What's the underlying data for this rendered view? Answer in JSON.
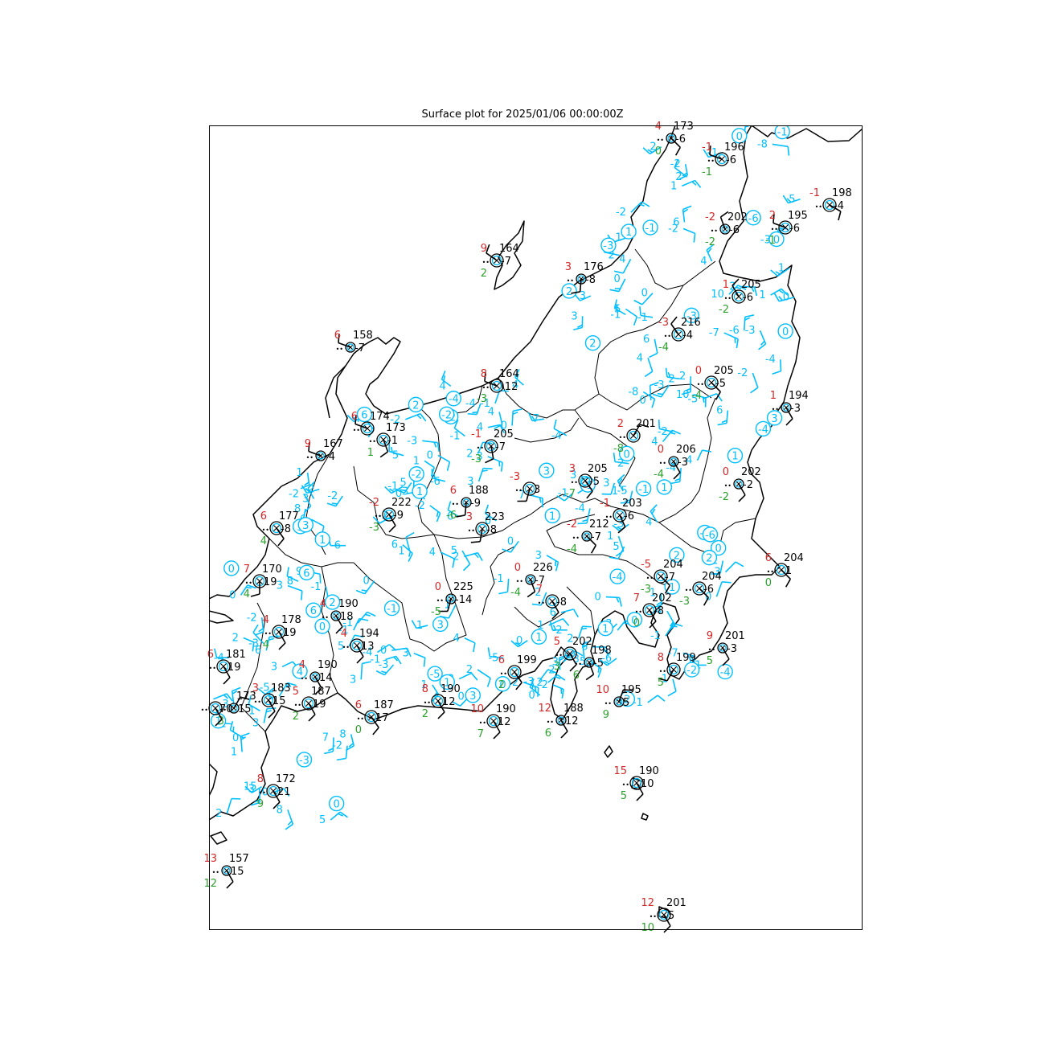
{
  "title": "Surface plot for 2025/01/06 00:00:00Z",
  "colors": {
    "temperature": "#d62728",
    "dewpoint": "#2ca02c",
    "pressure": "#000000",
    "dense_obs": "#00bfff",
    "coast": "#000000",
    "frame": "#000000"
  },
  "stations": [
    {
      "t": "4",
      "td": "0",
      "p": "173",
      "dp": "-6"
    },
    {
      "t": "-1",
      "td": "-1",
      "p": "196",
      "dp": "-6"
    },
    {
      "t": "-1",
      "td": "",
      "p": "198",
      "dp": "-4"
    },
    {
      "t": "-2",
      "td": "-2",
      "p": "202",
      "dp": "-6"
    },
    {
      "t": "2",
      "td": "-1",
      "p": "195",
      "dp": "-6"
    },
    {
      "t": "9",
      "td": "2",
      "p": "164",
      "dp": "-7"
    },
    {
      "t": "3",
      "td": "",
      "p": "176",
      "dp": "-8"
    },
    {
      "t": "1",
      "td": "-2",
      "p": "205",
      "dp": "-6"
    },
    {
      "t": "-3",
      "td": "-4",
      "p": "216",
      "dp": "-4"
    },
    {
      "t": "6",
      "td": "",
      "p": "158",
      "dp": "-7"
    },
    {
      "t": "8",
      "td": "-3",
      "p": "164",
      "dp": "-12"
    },
    {
      "t": "0",
      "td": "-4",
      "p": "205",
      "dp": "-5"
    },
    {
      "t": "1",
      "td": "",
      "p": "194",
      "dp": "-3"
    },
    {
      "t": "6",
      "td": "",
      "p": "174",
      "dp": ""
    },
    {
      "t": "",
      "td": "1",
      "p": "173",
      "dp": "-1"
    },
    {
      "t": "9",
      "td": "",
      "p": "167",
      "dp": "-4"
    },
    {
      "t": "-1",
      "td": "-3",
      "p": "205",
      "dp": "-7"
    },
    {
      "t": "2",
      "td": "-8",
      "p": "201",
      "dp": ""
    },
    {
      "t": "0",
      "td": "-4",
      "p": "206",
      "dp": "-3"
    },
    {
      "t": "3",
      "td": "-7",
      "p": "205",
      "dp": "-5"
    },
    {
      "t": "-3",
      "td": "",
      "p": "",
      "dp": "3"
    },
    {
      "t": "0",
      "td": "-2",
      "p": "202",
      "dp": "-2"
    },
    {
      "t": "6",
      "td": "4",
      "p": "177",
      "dp": "-8"
    },
    {
      "t": "-2",
      "td": "-3",
      "p": "222",
      "dp": "-9"
    },
    {
      "t": "6",
      "td": "-6",
      "p": "188",
      "dp": "-9"
    },
    {
      "t": "3",
      "td": "",
      "p": "223",
      "dp": "-8"
    },
    {
      "t": "-1",
      "td": "",
      "p": "203",
      "dp": "-6"
    },
    {
      "t": "-2",
      "td": "-4",
      "p": "212",
      "dp": "-7"
    },
    {
      "t": "6",
      "td": "0",
      "p": "204",
      "dp": "1"
    },
    {
      "t": "7",
      "td": "4",
      "p": "170",
      "dp": "19"
    },
    {
      "t": "0",
      "td": "-4",
      "p": "226",
      "dp": "-7"
    },
    {
      "t": "-5",
      "td": "-3",
      "p": "204",
      "dp": "-7"
    },
    {
      "t": "",
      "td": "-3",
      "p": "204",
      "dp": "-6"
    },
    {
      "t": "0",
      "td": "-5",
      "p": "225",
      "dp": "-14"
    },
    {
      "t": "7",
      "td": "",
      "p": "",
      "dp": "-8"
    },
    {
      "t": "7",
      "td": "0",
      "p": "202",
      "dp": "-8"
    },
    {
      "t": "4",
      "td": "",
      "p": "190",
      "dp": "18"
    },
    {
      "t": "4",
      "td": "4",
      "p": "178",
      "dp": "19"
    },
    {
      "t": "4",
      "td": "",
      "p": "194",
      "dp": "13"
    },
    {
      "t": "9",
      "td": "5",
      "p": "201",
      "dp": "-3"
    },
    {
      "t": "6",
      "td": "",
      "p": "181",
      "dp": "19"
    },
    {
      "t": "5",
      "td": "3",
      "p": "202",
      "dp": ""
    },
    {
      "t": "",
      "td": "6",
      "p": "198",
      "dp": "-5"
    },
    {
      "t": "6",
      "td": "2",
      "p": "199",
      "dp": ""
    },
    {
      "t": "8",
      "td": "5",
      "p": "199",
      "dp": ""
    },
    {
      "t": "4",
      "td": "",
      "p": "190",
      "dp": "14"
    },
    {
      "t": "3",
      "td": "",
      "p": "183",
      "dp": "15"
    },
    {
      "t": "5",
      "td": "2",
      "p": "187",
      "dp": "19"
    },
    {
      "t": "",
      "td": "3",
      "p": "173",
      "dp": "15"
    },
    {
      "t": "",
      "td": "",
      "p": "",
      "dp": "70"
    },
    {
      "t": "8",
      "td": "2",
      "p": "190",
      "dp": "12"
    },
    {
      "t": "10",
      "td": "9",
      "p": "195",
      "dp": "5"
    },
    {
      "t": "6",
      "td": "0",
      "p": "187",
      "dp": "17"
    },
    {
      "t": "10",
      "td": "7",
      "p": "190",
      "dp": "12"
    },
    {
      "t": "12",
      "td": "6",
      "p": "188",
      "dp": "12"
    },
    {
      "t": "15",
      "td": "5",
      "p": "190",
      "dp": "10"
    },
    {
      "t": "8",
      "td": "9",
      "p": "172",
      "dp": "21"
    },
    {
      "t": "13",
      "td": "12",
      "p": "157",
      "dp": "15"
    },
    {
      "t": "12",
      "td": "10",
      "p": "201",
      "dp": "5"
    }
  ],
  "dense_labels": [
    "0",
    "0",
    "1",
    "1",
    "1",
    "1",
    "1",
    "1",
    "1",
    "1",
    "1",
    "1",
    "1",
    "1",
    "1",
    "1",
    "1",
    "1",
    "1",
    "1",
    "1",
    "1",
    "2",
    "2",
    "2",
    "2",
    "2",
    "2",
    "2",
    "2",
    "2",
    "2",
    "2",
    "2",
    "2",
    "2",
    "2",
    "2",
    "2",
    "3",
    "3",
    "3",
    "3",
    "3",
    "3",
    "3",
    "3",
    "3",
    "3",
    "3",
    "3",
    "3",
    "3",
    "3",
    "3",
    "3",
    "4",
    "4",
    "4",
    "4",
    "4",
    "4",
    "4",
    "4",
    "4",
    "4",
    "4",
    "4",
    "4",
    "4",
    "4",
    "5",
    "5",
    "5",
    "5",
    "5",
    "5",
    "5",
    "5",
    "5",
    "5",
    "6",
    "6",
    "6",
    "6",
    "6",
    "6",
    "6",
    "6",
    "6",
    "6",
    "6",
    "7",
    "7",
    "7",
    "8",
    "8",
    "8",
    "8",
    "9",
    "9",
    "10",
    "10",
    "15",
    "0",
    "0",
    "0",
    "0",
    "0",
    "0",
    "0",
    "0",
    "0",
    "0",
    "0",
    "0",
    "0",
    "0",
    "0",
    "0",
    "0",
    "-1",
    "-1",
    "-1",
    "-1",
    "-1",
    "-1",
    "-1",
    "-1",
    "-1",
    "-1",
    "-1",
    "-1",
    "-1",
    "-1",
    "-2",
    "-2",
    "-2",
    "-2",
    "-2",
    "-2",
    "-2",
    "-2",
    "-2",
    "-2",
    "-2",
    "-2",
    "-2",
    "-2",
    "-2",
    "-2",
    "-3",
    "-3",
    "-3",
    "-3",
    "-3",
    "-3",
    "-3",
    "-3",
    "-3",
    "-3",
    "-3",
    "-4",
    "-4",
    "-4",
    "-4",
    "-4",
    "-4",
    "-4",
    "-5",
    "-5",
    "-5",
    "-5",
    "-6",
    "-6",
    "-6",
    "-6",
    "-7",
    "-7",
    "-8",
    "-8"
  ],
  "sky_circles": [
    "2",
    "-4",
    "-4",
    "-2",
    "0",
    "0",
    "6",
    "-2",
    "-1",
    "-1",
    "-2",
    "-2",
    "-5",
    "-3",
    "-6",
    "-3",
    "1",
    "-1",
    "3",
    "-6",
    "-2",
    "1",
    "0",
    "-3",
    "2",
    "-4",
    "1",
    "-1",
    "1",
    "0",
    "0",
    "1",
    "1",
    "1",
    "3",
    "2",
    "-4",
    "0",
    "0",
    "4",
    "3",
    "6",
    "0",
    "0",
    "1",
    "2",
    "6",
    "2",
    "1",
    "3",
    "3",
    "0",
    "1",
    "-1",
    "1",
    "2",
    "3",
    "2"
  ]
}
